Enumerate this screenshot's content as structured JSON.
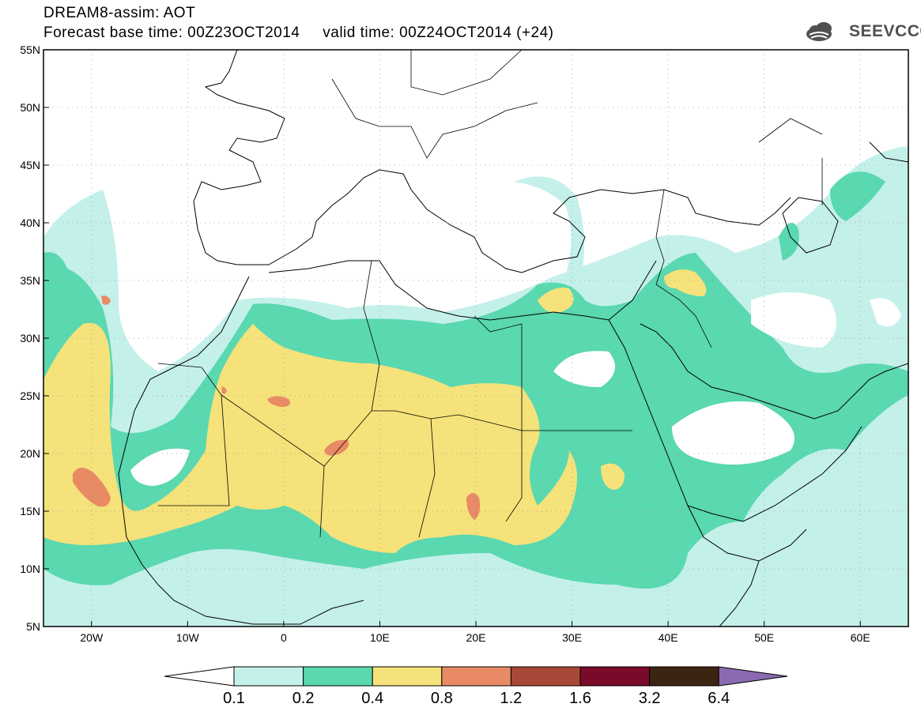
{
  "title": {
    "line1": "DREAM8-assim: AOT",
    "line2": "Forecast base time: 00Z23OCT2014     valid time: 00Z24OCT2014 (+24)"
  },
  "logo": {
    "text": "SEEVCCC",
    "icon": "cloud-icon"
  },
  "map": {
    "lon_range": [
      -25,
      65
    ],
    "lat_range": [
      5,
      55
    ],
    "lon_ticks": [
      {
        "value": -20,
        "label": "20W"
      },
      {
        "value": -10,
        "label": "10W"
      },
      {
        "value": 0,
        "label": "0"
      },
      {
        "value": 10,
        "label": "10E"
      },
      {
        "value": 20,
        "label": "20E"
      },
      {
        "value": 30,
        "label": "30E"
      },
      {
        "value": 40,
        "label": "40E"
      },
      {
        "value": 50,
        "label": "50E"
      },
      {
        "value": 60,
        "label": "60E"
      }
    ],
    "lat_ticks": [
      {
        "value": 55,
        "label": "55N"
      },
      {
        "value": 50,
        "label": "50N"
      },
      {
        "value": 45,
        "label": "45N"
      },
      {
        "value": 40,
        "label": "40N"
      },
      {
        "value": 35,
        "label": "35N"
      },
      {
        "value": 30,
        "label": "30N"
      },
      {
        "value": 25,
        "label": "25N"
      },
      {
        "value": 20,
        "label": "20N"
      },
      {
        "value": 15,
        "label": "15N"
      },
      {
        "value": 10,
        "label": "10N"
      },
      {
        "value": 5,
        "label": "5N"
      }
    ],
    "grid": "dotted"
  },
  "colorbar": {
    "colors": [
      "#c4f0ea",
      "#5ad8b0",
      "#f5e27a",
      "#e88a64",
      "#a84838",
      "#7a0a2a",
      "#3c2412",
      "#8a6ab0"
    ],
    "labels": [
      "0.1",
      "0.2",
      "0.4",
      "0.8",
      "1.2",
      "1.6",
      "3.2",
      "6.4"
    ]
  }
}
